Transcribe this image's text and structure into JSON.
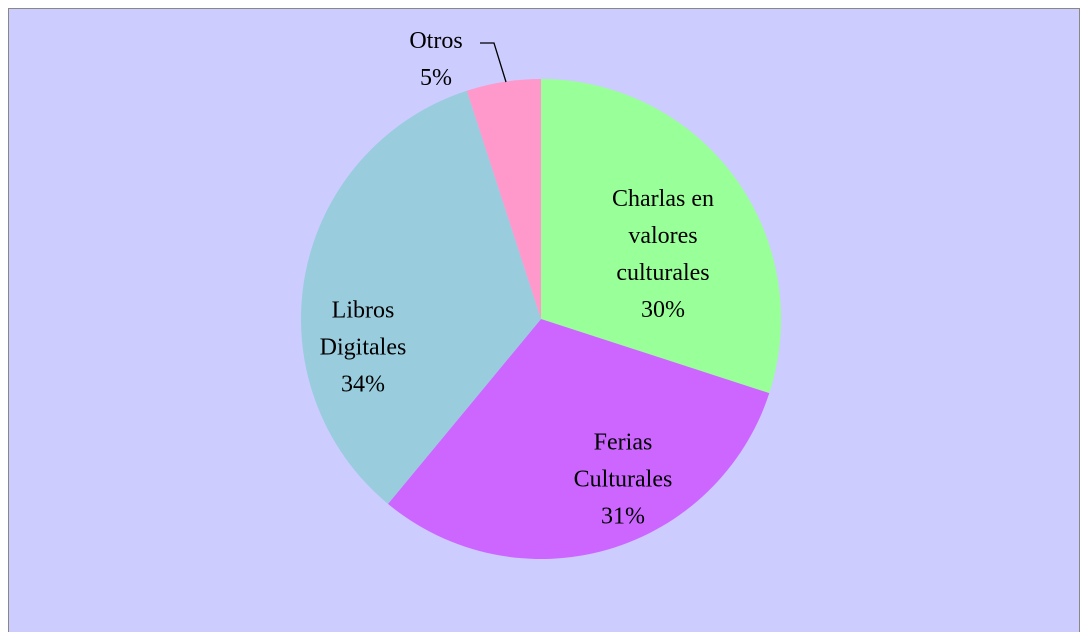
{
  "chart_data": {
    "type": "pie",
    "categories": [
      "Charlas en valores culturales",
      "Ferias Culturales",
      "Libros Digitales",
      "Otros"
    ],
    "values": [
      30,
      31,
      34,
      5
    ],
    "value_labels": [
      "30%",
      "31%",
      "34%",
      "5%"
    ],
    "colors": [
      "#99ff99",
      "#cc66ff",
      "#99ccdd",
      "#ff99cc"
    ]
  }
}
